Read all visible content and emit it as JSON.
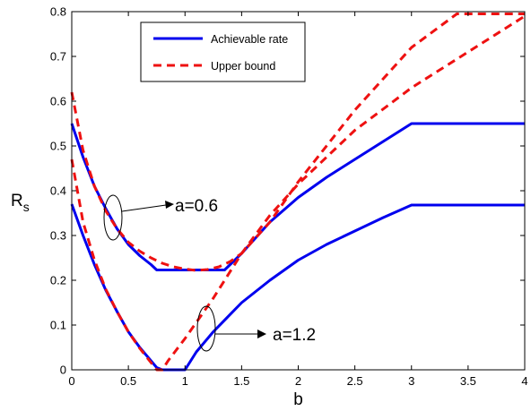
{
  "chart_data": {
    "type": "line",
    "xlabel": "b",
    "ylabel": "R",
    "ylabel_subscript": "s",
    "xlim": [
      0,
      4
    ],
    "ylim": [
      0,
      0.8
    ],
    "xticks": [
      "0",
      "0.5",
      "1",
      "1.5",
      "2",
      "2.5",
      "3",
      "3.5",
      "4"
    ],
    "yticks": [
      "0",
      "0.1",
      "0.2",
      "0.3",
      "0.4",
      "0.5",
      "0.6",
      "0.7",
      "0.8"
    ],
    "grid": false,
    "legend_position": "top-center",
    "legend": [
      {
        "label": "Achievable rate",
        "style": "solid",
        "color": "#0000ee"
      },
      {
        "label": "Upper bound",
        "style": "dashed",
        "color": "#ee1111"
      }
    ],
    "annotations": [
      {
        "text": "a=0.6"
      },
      {
        "text": "a=1.2"
      }
    ],
    "series": [
      {
        "legend_index": 0,
        "style": "solid",
        "color": "#0000ee",
        "x": [
          0,
          0.1,
          0.2,
          0.3,
          0.4,
          0.5,
          0.6,
          0.7,
          0.75,
          1.0,
          1.2,
          1.35,
          1.5,
          1.75,
          2.0,
          2.25,
          2.5,
          2.75,
          3.0,
          4.0
        ],
        "y": [
          0.55,
          0.475,
          0.41,
          0.36,
          0.315,
          0.28,
          0.255,
          0.235,
          0.223,
          0.223,
          0.223,
          0.223,
          0.26,
          0.33,
          0.385,
          0.43,
          0.47,
          0.51,
          0.55,
          0.55
        ]
      },
      {
        "legend_index": 0,
        "style": "solid",
        "color": "#0000ee",
        "x": [
          0,
          0.1,
          0.2,
          0.3,
          0.4,
          0.5,
          0.6,
          0.7,
          0.75,
          0.8,
          1.0,
          1.1,
          1.25,
          1.5,
          1.75,
          2.0,
          2.25,
          2.5,
          2.75,
          3.0,
          4.0
        ],
        "y": [
          0.37,
          0.3,
          0.235,
          0.178,
          0.13,
          0.085,
          0.05,
          0.02,
          0.005,
          0,
          0,
          0.04,
          0.085,
          0.15,
          0.2,
          0.245,
          0.28,
          0.31,
          0.34,
          0.368,
          0.368
        ]
      },
      {
        "legend_index": 1,
        "style": "dashed",
        "color": "#ee1111",
        "x": [
          0,
          0.1,
          0.2,
          0.3,
          0.4,
          0.5,
          0.6,
          0.7,
          0.8,
          0.9,
          1.0,
          1.1,
          1.2,
          1.3,
          1.4,
          1.5,
          1.75,
          2.0,
          2.5,
          3.0,
          3.4,
          4.0
        ],
        "y": [
          0.62,
          0.49,
          0.41,
          0.355,
          0.315,
          0.285,
          0.265,
          0.25,
          0.238,
          0.23,
          0.225,
          0.222,
          0.224,
          0.23,
          0.242,
          0.26,
          0.33,
          0.42,
          0.58,
          0.72,
          0.795,
          0.795
        ]
      },
      {
        "legend_index": 1,
        "style": "dashed",
        "color": "#ee1111",
        "x": [
          0,
          0.1,
          0.2,
          0.3,
          0.4,
          0.5,
          0.6,
          0.7,
          0.75,
          0.8,
          0.85,
          1.0,
          1.25,
          1.5,
          1.75,
          2.0,
          2.5,
          3.0,
          3.5,
          4.0
        ],
        "y": [
          0.47,
          0.33,
          0.245,
          0.18,
          0.13,
          0.085,
          0.048,
          0.016,
          0,
          0,
          0.02,
          0.07,
          0.16,
          0.26,
          0.345,
          0.415,
          0.535,
          0.63,
          0.71,
          0.79
        ]
      }
    ]
  }
}
